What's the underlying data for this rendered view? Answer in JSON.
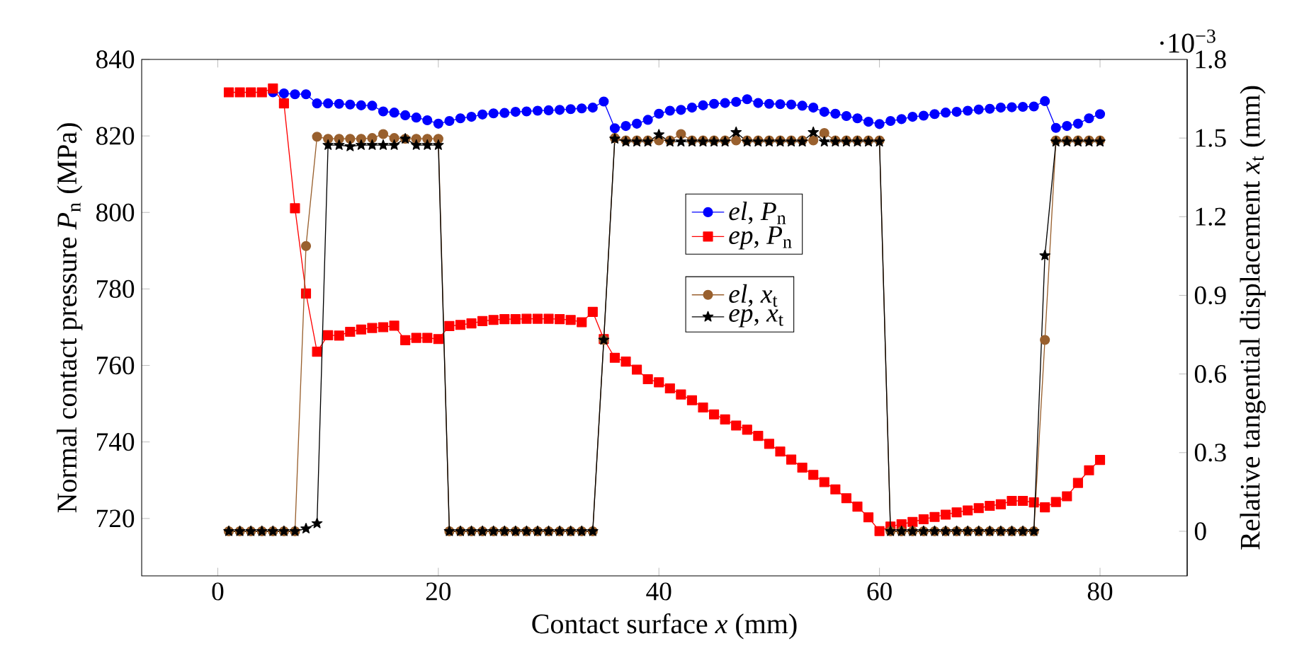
{
  "chart_data": {
    "type": "line",
    "xlabel": "Contact surface *x* (mm)",
    "ylabel": "Normal contact pressure *P*$_{n}$ (MPa)",
    "y2label": "Relative tangential displacement *x*$_{t}$ (mm)",
    "annotations": [
      "·10$^{−3}$"
    ],
    "x": [
      1,
      2,
      3,
      4,
      5,
      6,
      7,
      8,
      9,
      10,
      11,
      12,
      13,
      14,
      15,
      16,
      17,
      18,
      19,
      20,
      21,
      22,
      23,
      24,
      25,
      26,
      27,
      28,
      29,
      30,
      31,
      32,
      33,
      34,
      35,
      36,
      37,
      38,
      39,
      40,
      41,
      42,
      43,
      44,
      45,
      46,
      47,
      48,
      49,
      50,
      51,
      52,
      53,
      54,
      55,
      56,
      57,
      58,
      59,
      60,
      61,
      62,
      63,
      64,
      65,
      66,
      67,
      68,
      69,
      70,
      71,
      72,
      73,
      74,
      75,
      76,
      77,
      78,
      79,
      80
    ],
    "xlim": [
      -6.9,
      87.9
    ],
    "xticks": [
      0,
      20,
      40,
      60,
      80
    ],
    "ylim": [
      705,
      840
    ],
    "yticks": [
      720,
      740,
      760,
      780,
      800,
      820,
      840
    ],
    "y2lim": [
      -0.17,
      1.8
    ],
    "y2ticks": [
      0,
      0.3,
      0.6,
      0.9,
      1.2,
      1.5,
      1.8
    ],
    "legend": "center",
    "grid": false,
    "series": [
      {
        "name": "*el*, *P*$_{n}$",
        "color": "#0000ff",
        "marker": "circle",
        "values": [
          null,
          null,
          null,
          null,
          831.4,
          831.1,
          830.9,
          830.9,
          828.5,
          828.5,
          828.4,
          828.2,
          828.0,
          827.9,
          826.4,
          826.1,
          825.4,
          824.8,
          824.1,
          823.2,
          823.9,
          824.6,
          825.0,
          825.6,
          825.9,
          826.0,
          826.3,
          826.4,
          826.6,
          826.7,
          826.8,
          827.0,
          827.2,
          827.4,
          829.0,
          822.0,
          822.6,
          823.2,
          824.2,
          825.8,
          826.6,
          826.8,
          827.4,
          828.0,
          828.4,
          828.6,
          828.9,
          829.6,
          828.6,
          828.4,
          828.3,
          828.2,
          827.9,
          827.4,
          826.3,
          825.8,
          825.2,
          824.6,
          823.7,
          823.1,
          823.9,
          824.4,
          825.0,
          825.3,
          825.7,
          826.1,
          826.3,
          826.6,
          826.9,
          827.1,
          827.4,
          827.5,
          827.6,
          827.7,
          829.1,
          822.1,
          822.6,
          823.2,
          824.6,
          825.7
        ]
      },
      {
        "name": "*ep*, *P*$_{n}$",
        "color": "#ff0000",
        "marker": "square",
        "values": [
          831.4,
          831.4,
          831.4,
          831.4,
          832.4,
          828.5,
          801.1,
          778.8,
          763.6,
          767.9,
          767.8,
          768.8,
          769.4,
          769.8,
          770.0,
          770.4,
          766.6,
          767.2,
          767.2,
          766.9,
          770.3,
          770.6,
          771.0,
          771.6,
          771.9,
          772.1,
          772.1,
          772.2,
          772.2,
          772.2,
          772.1,
          771.9,
          771.3,
          774.0,
          766.9,
          762.0,
          761.0,
          758.9,
          756.4,
          755.6,
          754.0,
          752.4,
          750.9,
          749.0,
          747.2,
          745.9,
          744.3,
          743.2,
          741.6,
          739.5,
          737.5,
          735.4,
          733.3,
          731.4,
          729.5,
          727.6,
          725.3,
          723.1,
          720.3,
          716.7,
          717.9,
          718.5,
          719.1,
          719.8,
          720.4,
          721.0,
          721.6,
          722.1,
          722.7,
          723.3,
          723.7,
          724.6,
          724.6,
          724.2,
          722.9,
          724.3,
          725.8,
          729.3,
          732.6,
          735.3
        ]
      },
      {
        "name": "*el*, *x*$_{t}$",
        "color": "#99602e",
        "marker": "circle",
        "axis": "y2",
        "values": [
          0,
          0,
          0,
          0,
          0,
          0,
          0,
          1.088,
          1.505,
          1.497,
          1.497,
          1.497,
          1.497,
          1.5,
          1.515,
          1.5,
          1.497,
          1.497,
          1.497,
          1.497,
          0,
          0,
          0,
          0,
          0,
          0,
          0,
          0,
          0,
          0,
          0,
          0,
          0,
          0,
          0.73,
          1.5,
          1.491,
          1.491,
          1.491,
          1.491,
          1.491,
          1.515,
          1.491,
          1.491,
          1.491,
          1.491,
          1.491,
          1.491,
          1.491,
          1.491,
          1.491,
          1.491,
          1.491,
          1.491,
          1.519,
          1.491,
          1.491,
          1.491,
          1.491,
          1.491,
          0,
          0,
          0,
          0,
          0,
          0,
          0,
          0,
          0,
          0,
          0,
          0,
          0,
          0,
          0.73,
          1.491,
          1.491,
          1.491,
          1.491,
          1.491
        ]
      },
      {
        "name": "*ep*, *x*$_{t}$",
        "color": "#000000",
        "marker": "star",
        "axis": "y2",
        "values": [
          0,
          0,
          0,
          0,
          0,
          0,
          0,
          0.01,
          0.03,
          1.473,
          1.473,
          1.468,
          1.473,
          1.473,
          1.473,
          1.473,
          1.497,
          1.473,
          1.473,
          1.473,
          0,
          0,
          0,
          0,
          0,
          0,
          0,
          0,
          0,
          0,
          0,
          0,
          0,
          0,
          0.73,
          1.497,
          1.486,
          1.486,
          1.486,
          1.513,
          1.486,
          1.486,
          1.486,
          1.486,
          1.486,
          1.486,
          1.522,
          1.486,
          1.486,
          1.486,
          1.486,
          1.486,
          1.486,
          1.522,
          1.486,
          1.486,
          1.486,
          1.486,
          1.486,
          1.486,
          0,
          0,
          0,
          0,
          0,
          0,
          0,
          0,
          0,
          0,
          0,
          0,
          0,
          0,
          1.052,
          1.486,
          1.486,
          1.486,
          1.486,
          1.486
        ]
      }
    ]
  }
}
